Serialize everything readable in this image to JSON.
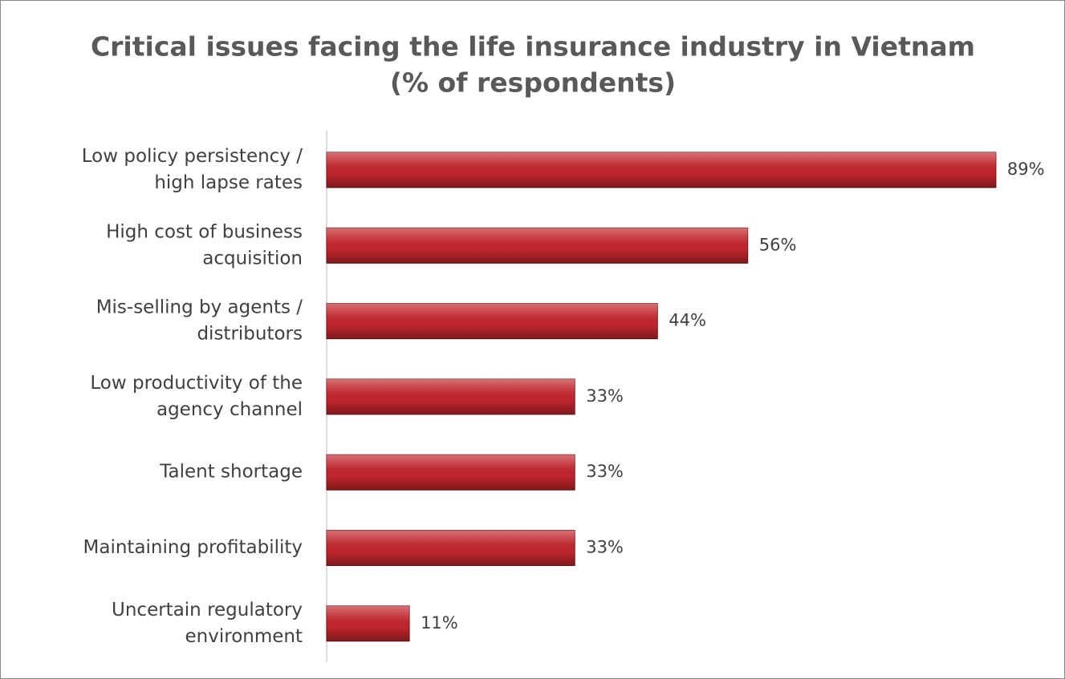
{
  "chart_data": {
    "type": "bar",
    "orientation": "horizontal",
    "title": [
      "Critical issues facing the life insurance industry in Vietnam",
      "(% of respondents)"
    ],
    "categories": [
      [
        "Low policy persistency /",
        "high lapse rates"
      ],
      [
        "High cost of business",
        "acquisition"
      ],
      [
        "Mis-selling by agents /",
        "distributors"
      ],
      [
        "Low productivity of the",
        "agency channel"
      ],
      [
        "Talent shortage"
      ],
      [
        "Maintaining profitability"
      ],
      [
        "Uncertain regulatory",
        "environment"
      ]
    ],
    "values": [
      89,
      56,
      44,
      33,
      33,
      33,
      11
    ],
    "value_labels": [
      "89%",
      "56%",
      "44%",
      "33%",
      "33%",
      "33%",
      "11%"
    ],
    "color": "#c0262c",
    "xlim": [
      0,
      100
    ]
  }
}
